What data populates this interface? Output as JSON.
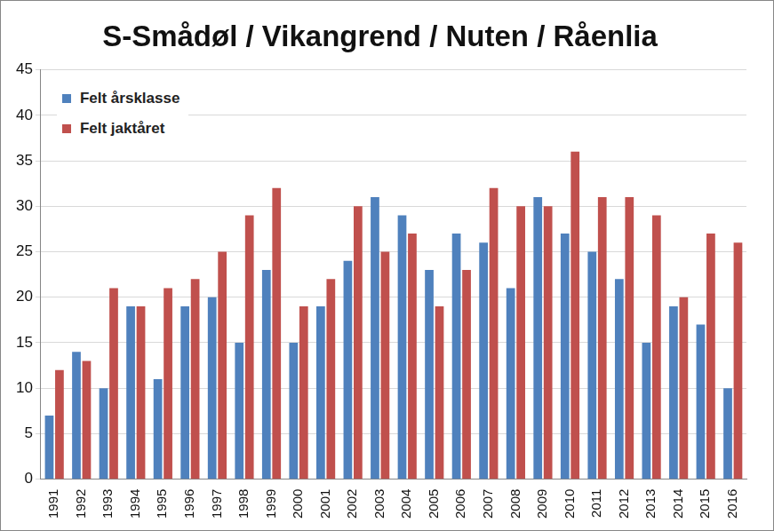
{
  "chart_data": {
    "type": "bar",
    "title": "S-Smådøl / Vikangrend / Nuten / Råenlia",
    "categories": [
      "1991",
      "1992",
      "1993",
      "1994",
      "1995",
      "1996",
      "1997",
      "1998",
      "1999",
      "2000",
      "2001",
      "2002",
      "2003",
      "2004",
      "2005",
      "2006",
      "2007",
      "2008",
      "2009",
      "2010",
      "2011",
      "2012",
      "2013",
      "2014",
      "2015",
      "2016"
    ],
    "series": [
      {
        "name": "Felt årsklasse",
        "color": "#4f81bd",
        "values": [
          7,
          14,
          10,
          19,
          11,
          19,
          20,
          15,
          23,
          15,
          19,
          24,
          31,
          29,
          23,
          27,
          26,
          21,
          31,
          27,
          25,
          22,
          15,
          19,
          17,
          10
        ]
      },
      {
        "name": "Felt jaktåret",
        "color": "#c0504d",
        "values": [
          12,
          13,
          21,
          19,
          21,
          22,
          25,
          29,
          32,
          19,
          22,
          30,
          25,
          27,
          19,
          23,
          32,
          30,
          30,
          36,
          31,
          31,
          29,
          20,
          27,
          26
        ]
      }
    ],
    "ylim": [
      0,
      45
    ],
    "yticks": [
      0,
      5,
      10,
      15,
      20,
      25,
      30,
      35,
      40,
      45
    ],
    "grid": true,
    "legend": "top-left"
  }
}
